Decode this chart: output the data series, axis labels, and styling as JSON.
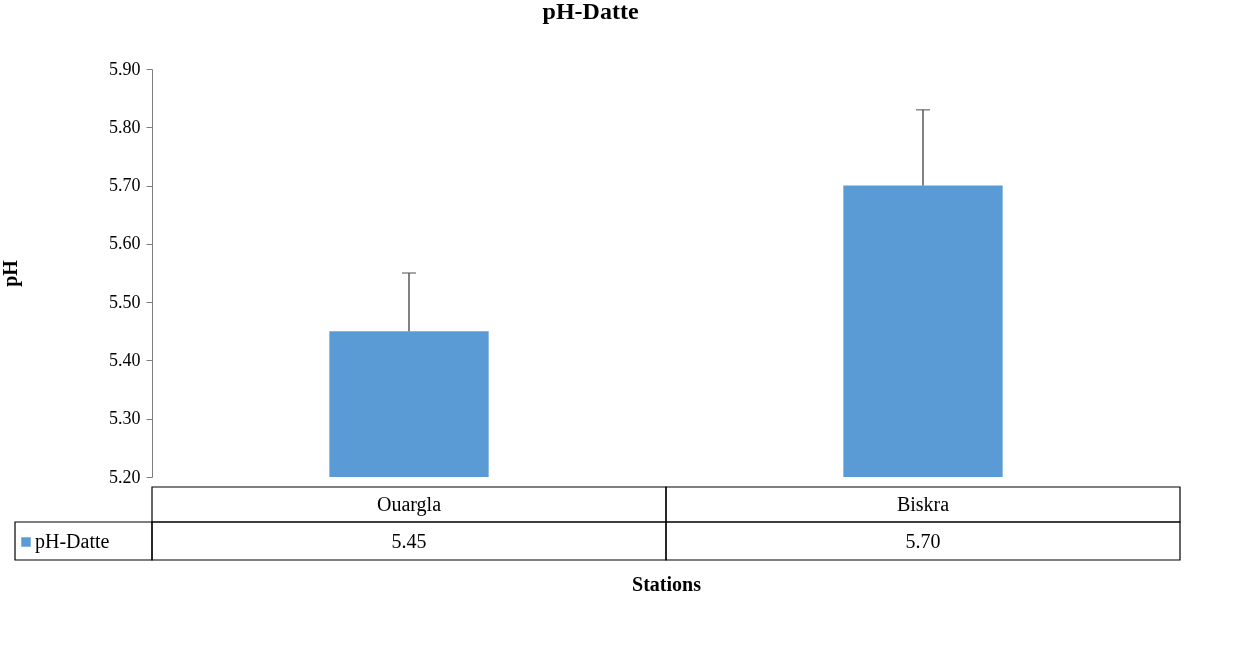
{
  "chart_data": {
    "type": "bar",
    "title": "pH-Datte",
    "xlabel": "Stations",
    "ylabel": "pH",
    "categories": [
      "Ouargla",
      "Biskra"
    ],
    "series": [
      {
        "name": "pH-Datte",
        "color": "#5b9bd5",
        "values": [
          5.45,
          5.7
        ],
        "errors": [
          [
            5.45,
            5.55
          ],
          [
            5.7,
            5.83
          ]
        ],
        "value_labels": [
          "5.45",
          "5.70"
        ]
      }
    ],
    "ylim": [
      5.2,
      5.9
    ],
    "yticks": [
      {
        "value": 5.2,
        "label": "5.20"
      },
      {
        "value": 5.3,
        "label": "5.30"
      },
      {
        "value": 5.4,
        "label": "5.40"
      },
      {
        "value": 5.5,
        "label": "5.50"
      },
      {
        "value": 5.6,
        "label": "5.60"
      },
      {
        "value": 5.7,
        "label": "5.70"
      },
      {
        "value": 5.8,
        "label": "5.80"
      },
      {
        "value": 5.9,
        "label": "5.90"
      }
    ],
    "grid": false,
    "legend": "bottom"
  }
}
